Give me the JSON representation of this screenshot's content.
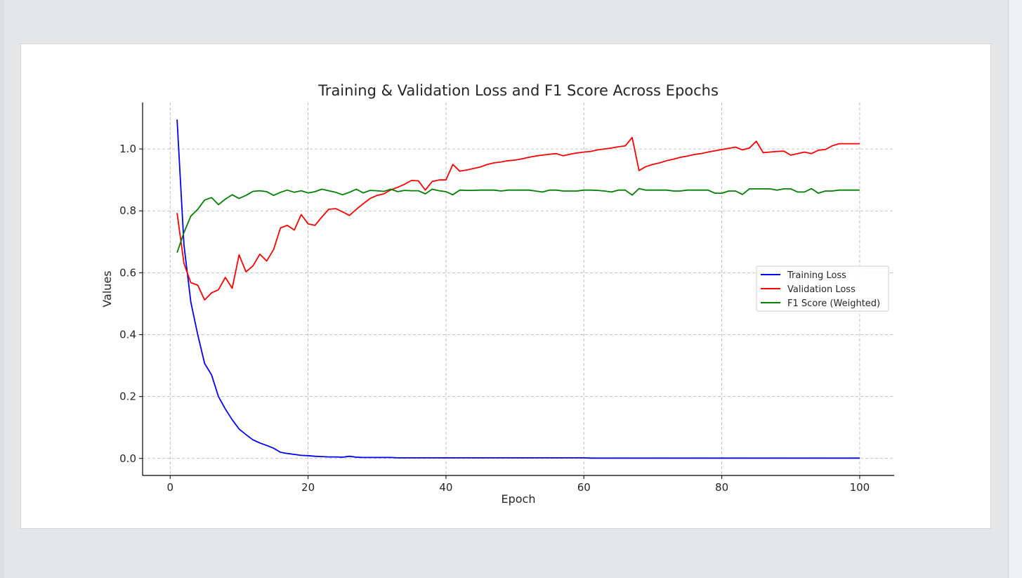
{
  "chart_data": {
    "type": "line",
    "title": "Training & Validation Loss and F1 Score Across Epochs",
    "xlabel": "Epoch",
    "ylabel": "Values",
    "xlim": [
      -4,
      105
    ],
    "ylim": [
      -0.055,
      1.15
    ],
    "xticks": [
      0,
      20,
      40,
      60,
      80,
      100
    ],
    "yticks": [
      0.0,
      0.2,
      0.4,
      0.6,
      0.8,
      1.0
    ],
    "ytick_labels": [
      "0.0",
      "0.2",
      "0.4",
      "0.6",
      "0.8",
      "1.0"
    ],
    "grid": true,
    "legend_position": "center-right",
    "x": [
      1,
      2,
      3,
      4,
      5,
      6,
      7,
      8,
      9,
      10,
      11,
      12,
      13,
      14,
      15,
      16,
      17,
      18,
      19,
      20,
      21,
      22,
      23,
      24,
      25,
      26,
      27,
      28,
      29,
      30,
      31,
      32,
      33,
      34,
      35,
      36,
      37,
      38,
      39,
      40,
      41,
      42,
      43,
      44,
      45,
      46,
      47,
      48,
      49,
      50,
      51,
      52,
      53,
      54,
      55,
      56,
      57,
      58,
      59,
      60,
      61,
      62,
      63,
      64,
      65,
      66,
      67,
      68,
      69,
      70,
      71,
      72,
      73,
      74,
      75,
      76,
      77,
      78,
      79,
      80,
      81,
      82,
      83,
      84,
      85,
      86,
      87,
      88,
      89,
      90,
      91,
      92,
      93,
      94,
      95,
      96,
      97,
      98,
      99,
      100
    ],
    "series": [
      {
        "name": "Training Loss",
        "color": "#0000ff",
        "values": [
          1.095,
          0.69,
          0.505,
          0.4,
          0.307,
          0.27,
          0.2,
          0.16,
          0.125,
          0.095,
          0.077,
          0.06,
          0.05,
          0.042,
          0.033,
          0.02,
          0.016,
          0.013,
          0.01,
          0.009,
          0.007,
          0.006,
          0.005,
          0.005,
          0.004,
          0.007,
          0.004,
          0.003,
          0.003,
          0.003,
          0.003,
          0.003,
          0.002,
          0.002,
          0.002,
          0.002,
          0.002,
          0.002,
          0.002,
          0.002,
          0.002,
          0.002,
          0.002,
          0.002,
          0.002,
          0.002,
          0.002,
          0.002,
          0.002,
          0.002,
          0.002,
          0.002,
          0.002,
          0.002,
          0.002,
          0.002,
          0.002,
          0.002,
          0.002,
          0.002,
          0.001,
          0.001,
          0.001,
          0.001,
          0.001,
          0.001,
          0.001,
          0.001,
          0.001,
          0.001,
          0.001,
          0.001,
          0.001,
          0.001,
          0.001,
          0.001,
          0.001,
          0.001,
          0.001,
          0.001,
          0.001,
          0.001,
          0.001,
          0.001,
          0.001,
          0.001,
          0.001,
          0.001,
          0.001,
          0.001,
          0.001,
          0.001,
          0.001,
          0.001,
          0.001,
          0.001,
          0.001,
          0.001,
          0.001,
          0.001
        ]
      },
      {
        "name": "Validation Loss",
        "color": "#ff0000",
        "values": [
          0.793,
          0.63,
          0.568,
          0.56,
          0.512,
          0.535,
          0.545,
          0.585,
          0.55,
          0.658,
          0.603,
          0.622,
          0.66,
          0.638,
          0.675,
          0.745,
          0.753,
          0.738,
          0.788,
          0.758,
          0.753,
          0.78,
          0.805,
          0.807,
          0.797,
          0.785,
          0.805,
          0.823,
          0.84,
          0.85,
          0.855,
          0.868,
          0.876,
          0.886,
          0.898,
          0.897,
          0.867,
          0.895,
          0.9,
          0.9,
          0.95,
          0.928,
          0.932,
          0.937,
          0.942,
          0.95,
          0.955,
          0.958,
          0.962,
          0.964,
          0.968,
          0.973,
          0.977,
          0.98,
          0.983,
          0.985,
          0.978,
          0.983,
          0.987,
          0.99,
          0.992,
          0.997,
          1.0,
          1.003,
          1.007,
          1.01,
          1.037,
          0.93,
          0.943,
          0.95,
          0.955,
          0.962,
          0.967,
          0.973,
          0.977,
          0.982,
          0.985,
          0.99,
          0.994,
          0.998,
          1.002,
          1.006,
          0.997,
          1.003,
          1.025,
          0.988,
          0.99,
          0.992,
          0.993,
          0.98,
          0.985,
          0.99,
          0.985,
          0.996,
          0.998,
          1.01,
          1.017,
          1.017,
          1.017,
          1.017
        ]
      },
      {
        "name": "F1 Score (Weighted)",
        "color": "#008000",
        "values": [
          0.665,
          0.73,
          0.783,
          0.805,
          0.835,
          0.843,
          0.82,
          0.838,
          0.852,
          0.84,
          0.85,
          0.863,
          0.865,
          0.862,
          0.85,
          0.86,
          0.867,
          0.86,
          0.865,
          0.858,
          0.862,
          0.87,
          0.865,
          0.86,
          0.852,
          0.86,
          0.87,
          0.858,
          0.866,
          0.865,
          0.863,
          0.87,
          0.862,
          0.866,
          0.865,
          0.865,
          0.855,
          0.87,
          0.865,
          0.862,
          0.852,
          0.867,
          0.866,
          0.866,
          0.867,
          0.867,
          0.867,
          0.864,
          0.867,
          0.867,
          0.867,
          0.867,
          0.864,
          0.861,
          0.867,
          0.867,
          0.864,
          0.864,
          0.864,
          0.867,
          0.867,
          0.866,
          0.864,
          0.861,
          0.867,
          0.867,
          0.851,
          0.872,
          0.867,
          0.867,
          0.867,
          0.867,
          0.864,
          0.864,
          0.867,
          0.867,
          0.867,
          0.867,
          0.857,
          0.857,
          0.864,
          0.864,
          0.853,
          0.871,
          0.871,
          0.871,
          0.871,
          0.867,
          0.871,
          0.871,
          0.861,
          0.861,
          0.872,
          0.857,
          0.864,
          0.864,
          0.867,
          0.867,
          0.867,
          0.867
        ]
      }
    ]
  }
}
